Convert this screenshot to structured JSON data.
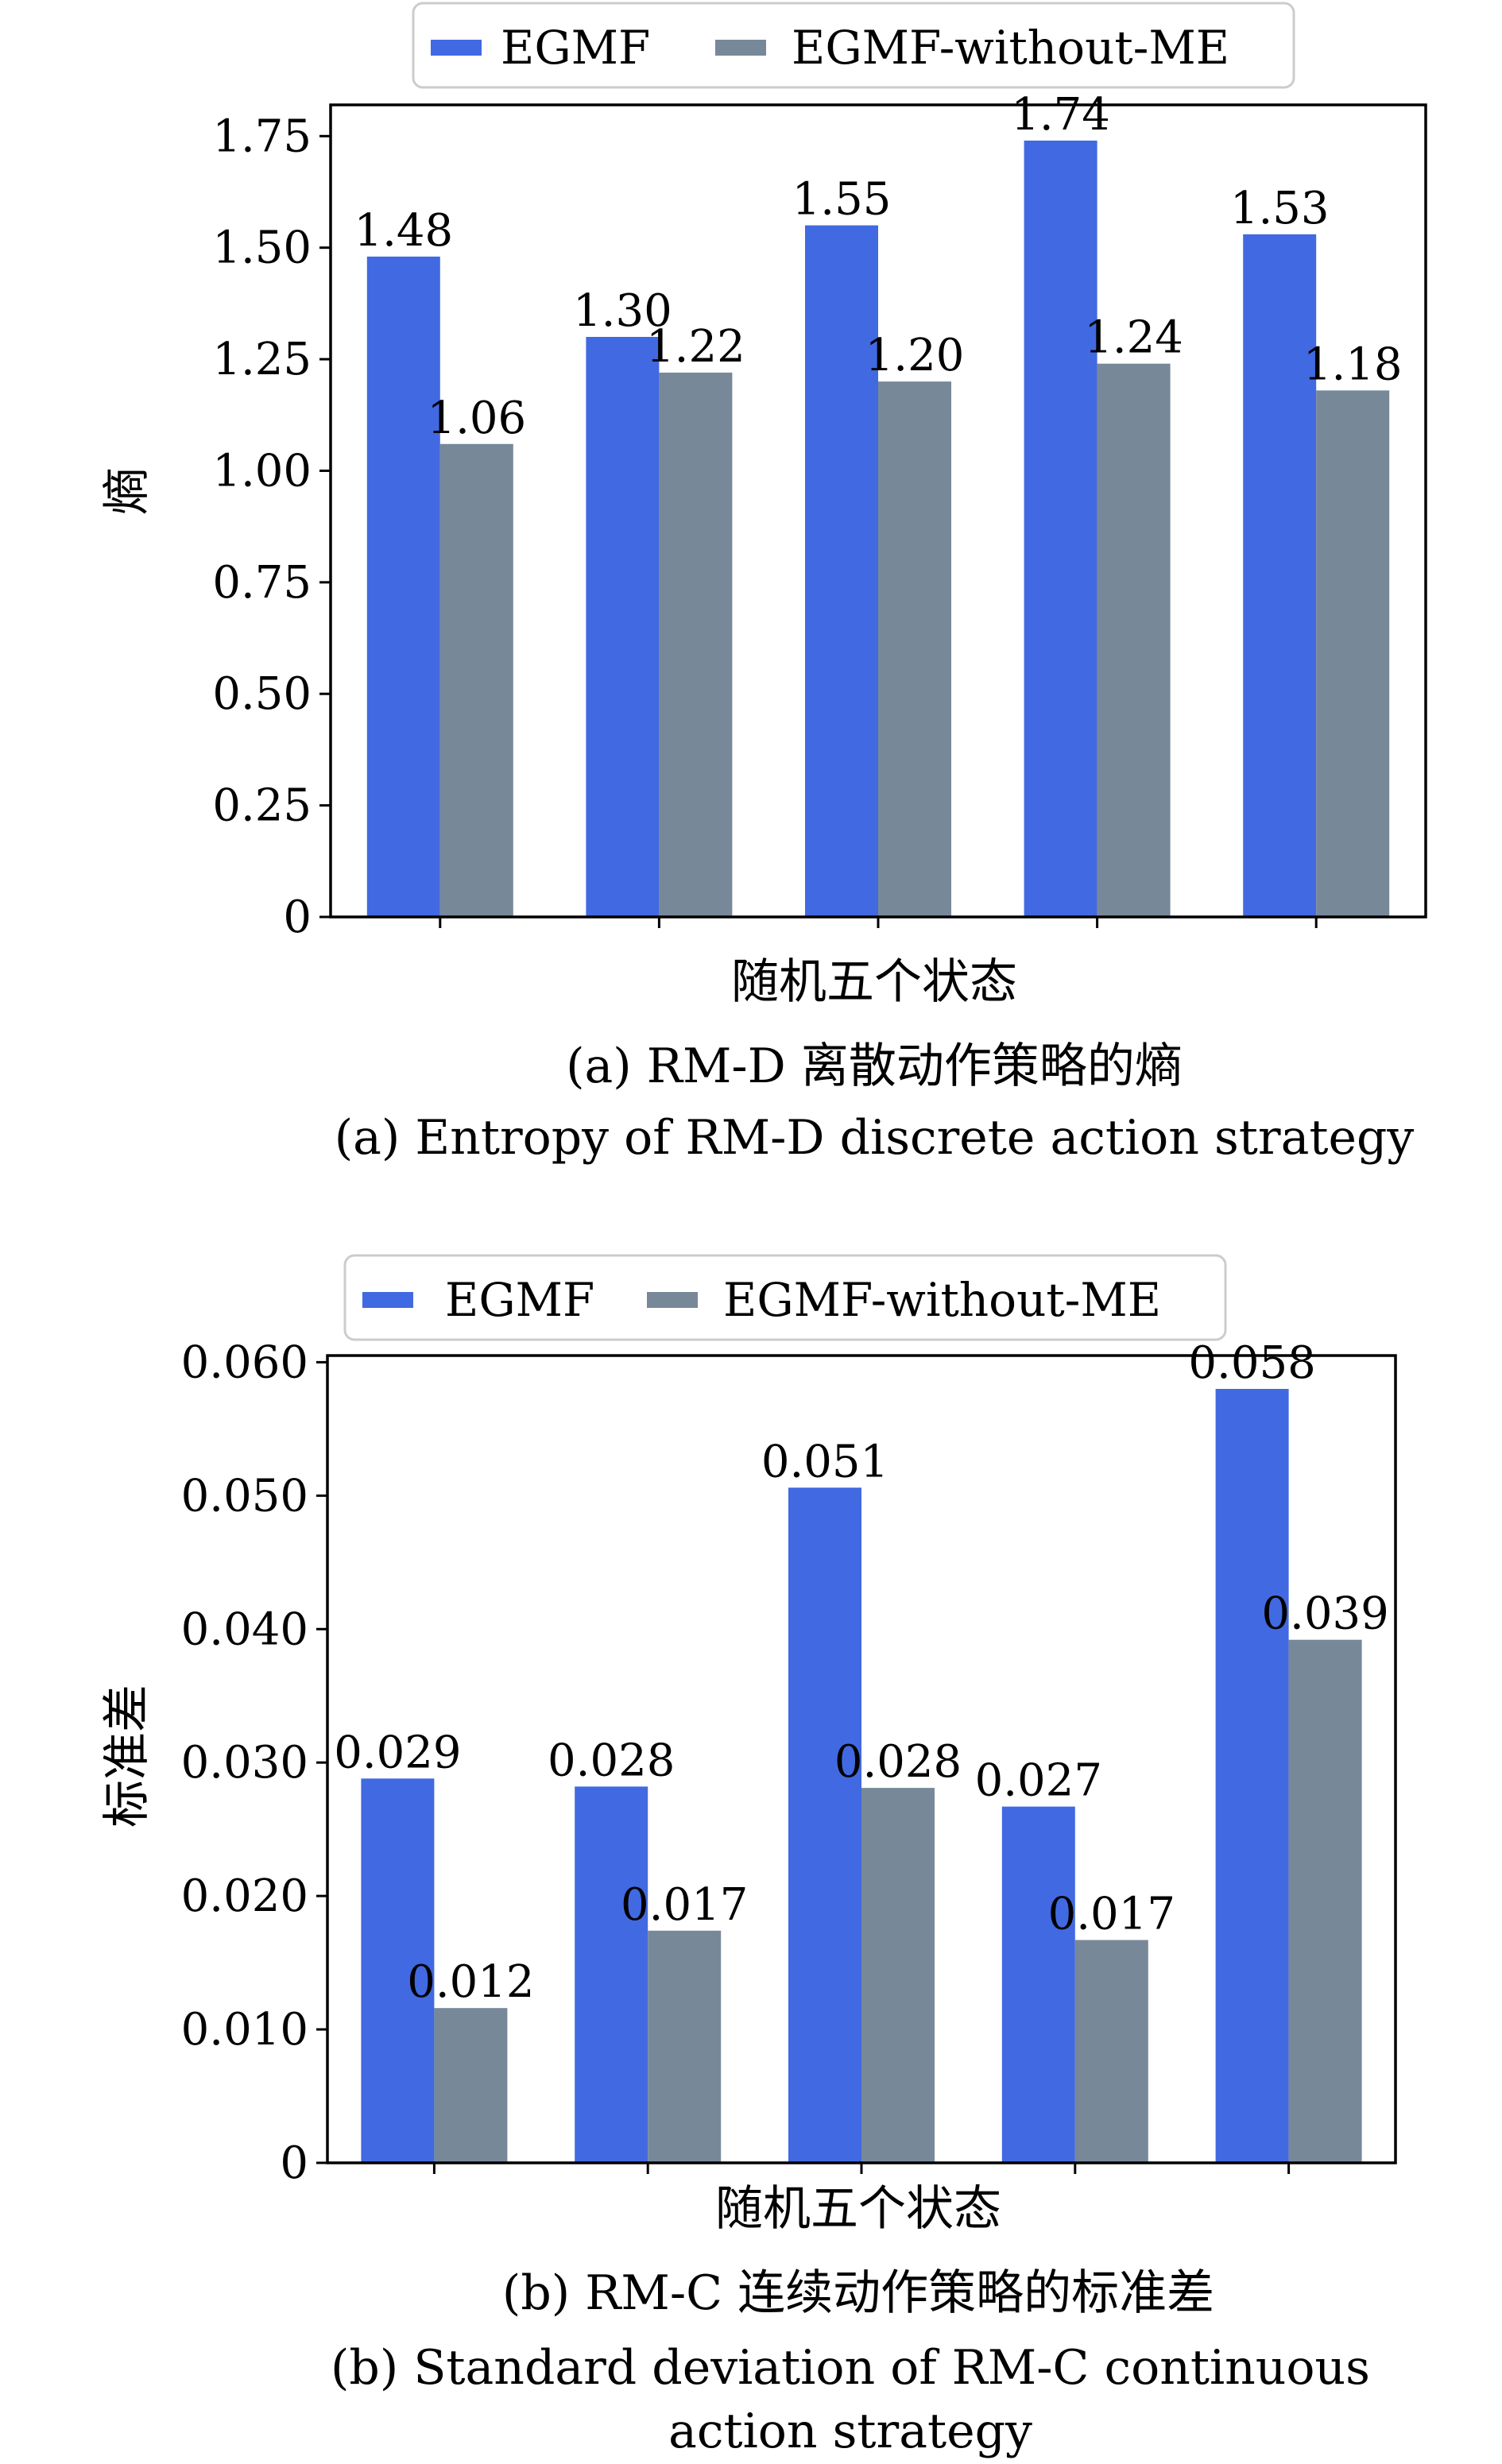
{
  "chart_data": [
    {
      "type": "bar",
      "categories": [
        "",
        "",
        "",
        "",
        ""
      ],
      "xlabel": "随机五个状态",
      "ylabel": "熵",
      "ylim": [
        0,
        1.82
      ],
      "yticks": [
        "0",
        "0.25",
        "0.50",
        "0.75",
        "1.00",
        "1.25",
        "1.50",
        "1.75"
      ],
      "ytick_values": [
        0,
        0.25,
        0.5,
        0.75,
        1.0,
        1.25,
        1.5,
        1.75
      ],
      "series": [
        {
          "name": "EGMF",
          "color": "#4169e1",
          "values": [
            1.48,
            1.3,
            1.55,
            1.74,
            1.53
          ],
          "labels": [
            "1.48",
            "1.30",
            "1.55",
            "1.74",
            "1.53"
          ]
        },
        {
          "name": "EGMF-without-ME",
          "color": "#778899",
          "values": [
            1.06,
            1.22,
            1.2,
            1.24,
            1.18
          ],
          "labels": [
            "1.06",
            "1.22",
            "1.20",
            "1.24",
            "1.18"
          ]
        }
      ],
      "legend": "top-center, outside",
      "grid": false,
      "caption_cn": "(a) RM-D 离散动作策略的熵",
      "caption_en": "(a) Entropy of RM-D discrete action strategy"
    },
    {
      "type": "bar",
      "categories": [
        "",
        "",
        "",
        "",
        ""
      ],
      "xlabel": "随机五个状态",
      "ylabel": "标准差",
      "ylim": [
        0,
        0.0605
      ],
      "yticks": [
        "0",
        "0.010",
        "0.020",
        "0.030",
        "0.040",
        "0.050",
        "0.060"
      ],
      "ytick_values": [
        0,
        0.01,
        0.02,
        0.03,
        0.04,
        0.05,
        0.06
      ],
      "series": [
        {
          "name": "EGMF",
          "color": "#4169e1",
          "values": [
            0.0288,
            0.0282,
            0.0506,
            0.0267,
            0.058
          ],
          "labels": [
            "0.029",
            "0.028",
            "0.051",
            "0.027",
            "0.058"
          ]
        },
        {
          "name": "EGMF-without-ME",
          "color": "#778899",
          "values": [
            0.0116,
            0.0174,
            0.0281,
            0.0167,
            0.0392
          ],
          "labels": [
            "0.012",
            "0.017",
            "0.028",
            "0.017",
            "0.039"
          ]
        }
      ],
      "legend": "top-center, outside",
      "grid": false,
      "caption_cn": "(b) RM-C 连续动作策略的标准差",
      "caption_en_line1": "(b) Standard deviation of RM-C continuous",
      "caption_en_line2": "action strategy"
    }
  ]
}
